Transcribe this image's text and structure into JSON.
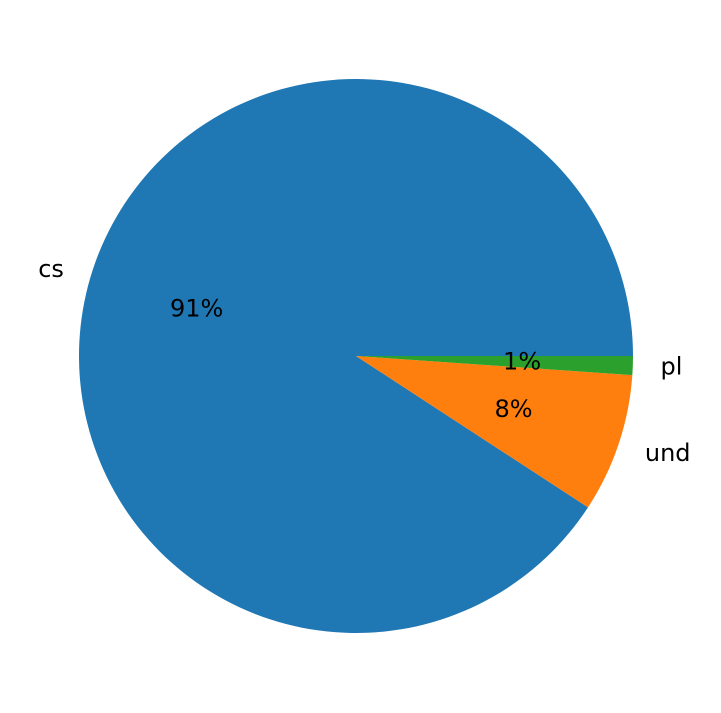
{
  "chart_data": {
    "type": "pie",
    "categories": [
      "cs",
      "und",
      "pl"
    ],
    "values": [
      90.8,
      8.1,
      1.1
    ],
    "data_labels": [
      "91%",
      "8%",
      "1%"
    ],
    "colors": [
      "#1f77b4",
      "#ff7f0e",
      "#2ca02c"
    ],
    "start_angle_deg": 0,
    "direction": "counterclockwise",
    "legend": "none"
  }
}
